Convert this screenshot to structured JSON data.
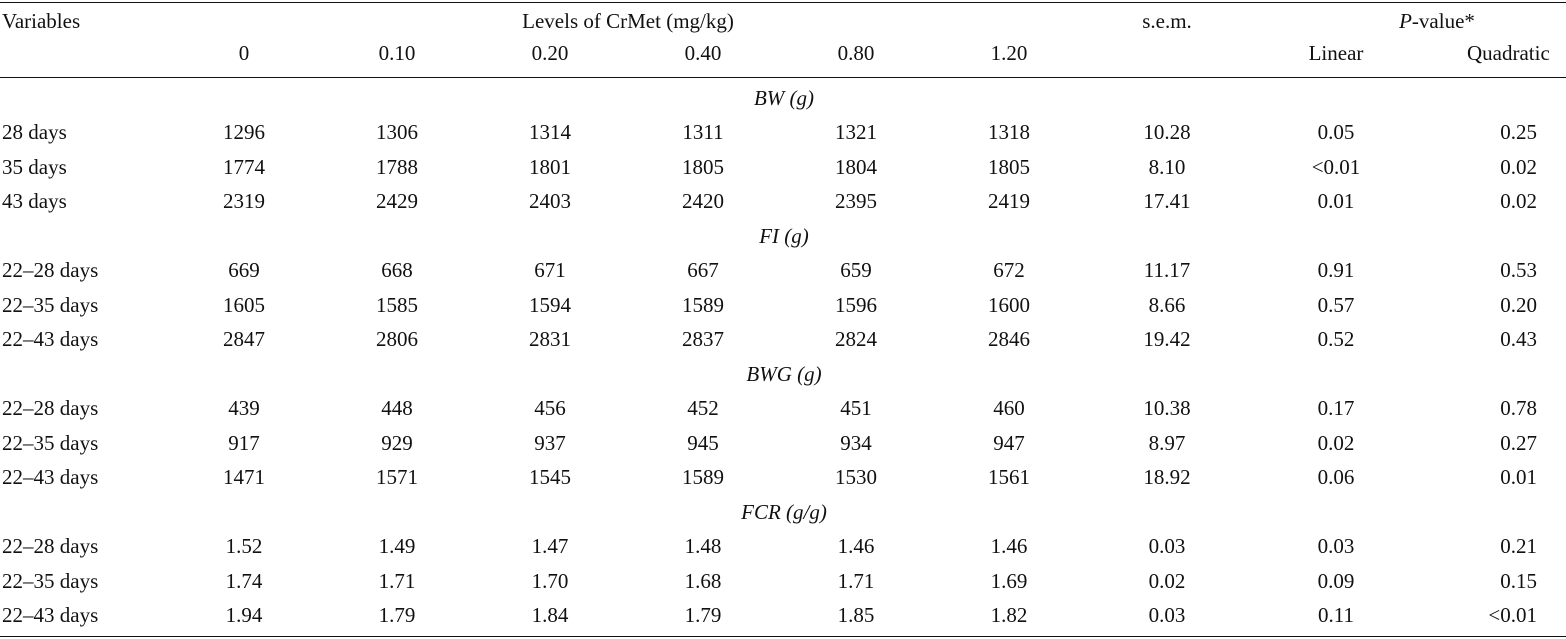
{
  "header": {
    "variables": "Variables",
    "levels_title": "Levels of CrMet (mg/kg)",
    "sem": "s.e.m.",
    "pvalue_italic": "P",
    "pvalue_rest": "-value*",
    "levels": [
      "0",
      "0.10",
      "0.20",
      "0.40",
      "0.80",
      "1.20"
    ],
    "linear": "Linear",
    "quadratic": "Quadratic"
  },
  "sections": [
    {
      "title": "BW (g)",
      "rows": [
        {
          "label": "28 days",
          "values": [
            "1296",
            "1306",
            "1314",
            "1311",
            "1321",
            "1318"
          ],
          "sem": "10.28",
          "linear": "0.05",
          "quadratic": "0.25"
        },
        {
          "label": "35 days",
          "values": [
            "1774",
            "1788",
            "1801",
            "1805",
            "1804",
            "1805"
          ],
          "sem": "8.10",
          "linear": "<0.01",
          "quadratic": "0.02"
        },
        {
          "label": "43 days",
          "values": [
            "2319",
            "2429",
            "2403",
            "2420",
            "2395",
            "2419"
          ],
          "sem": "17.41",
          "linear": "0.01",
          "quadratic": "0.02"
        }
      ]
    },
    {
      "title": "FI (g)",
      "rows": [
        {
          "label": "22–28 days",
          "values": [
            "669",
            "668",
            "671",
            "667",
            "659",
            "672"
          ],
          "sem": "11.17",
          "linear": "0.91",
          "quadratic": "0.53"
        },
        {
          "label": "22–35 days",
          "values": [
            "1605",
            "1585",
            "1594",
            "1589",
            "1596",
            "1600"
          ],
          "sem": "8.66",
          "linear": "0.57",
          "quadratic": "0.20"
        },
        {
          "label": "22–43 days",
          "values": [
            "2847",
            "2806",
            "2831",
            "2837",
            "2824",
            "2846"
          ],
          "sem": "19.42",
          "linear": "0.52",
          "quadratic": "0.43"
        }
      ]
    },
    {
      "title": "BWG (g)",
      "rows": [
        {
          "label": "22–28 days",
          "values": [
            "439",
            "448",
            "456",
            "452",
            "451",
            "460"
          ],
          "sem": "10.38",
          "linear": "0.17",
          "quadratic": "0.78"
        },
        {
          "label": "22–35 days",
          "values": [
            "917",
            "929",
            "937",
            "945",
            "934",
            "947"
          ],
          "sem": "8.97",
          "linear": "0.02",
          "quadratic": "0.27"
        },
        {
          "label": "22–43 days",
          "values": [
            "1471",
            "1571",
            "1545",
            "1589",
            "1530",
            "1561"
          ],
          "sem": "18.92",
          "linear": "0.06",
          "quadratic": "0.01"
        }
      ]
    },
    {
      "title": "FCR (g/g)",
      "rows": [
        {
          "label": "22–28 days",
          "values": [
            "1.52",
            "1.49",
            "1.47",
            "1.48",
            "1.46",
            "1.46"
          ],
          "sem": "0.03",
          "linear": "0.03",
          "quadratic": "0.21"
        },
        {
          "label": "22–35 days",
          "values": [
            "1.74",
            "1.71",
            "1.70",
            "1.68",
            "1.71",
            "1.69"
          ],
          "sem": "0.02",
          "linear": "0.09",
          "quadratic": "0.15"
        },
        {
          "label": "22–43 days",
          "values": [
            "1.94",
            "1.79",
            "1.84",
            "1.79",
            "1.85",
            "1.82"
          ],
          "sem": "0.03",
          "linear": "0.11",
          "quadratic": "<0.01"
        }
      ]
    }
  ]
}
